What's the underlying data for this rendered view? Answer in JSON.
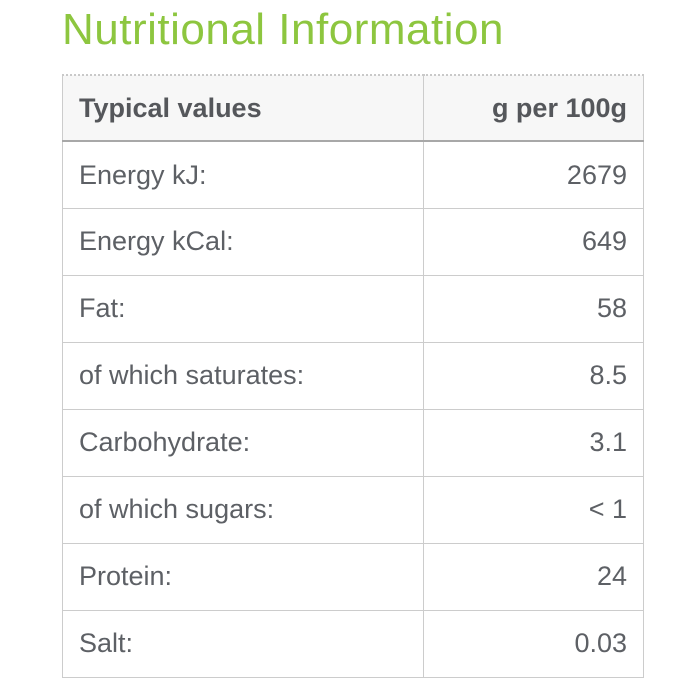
{
  "page": {
    "title": "Nutritional Information",
    "title_color": "#8dc63f"
  },
  "table": {
    "header": {
      "label_col": "Typical values",
      "value_col": "g per 100g"
    },
    "rows": [
      {
        "label": "Energy kJ:",
        "value": "2679"
      },
      {
        "label": "Energy kCal:",
        "value": "649"
      },
      {
        "label": "Fat:",
        "value": "58"
      },
      {
        "label": "of which saturates:",
        "value": "8.5"
      },
      {
        "label": "Carbohydrate:",
        "value": "3.1"
      },
      {
        "label": "of which sugars:",
        "value": "< 1"
      },
      {
        "label": "Protein:",
        "value": "24"
      },
      {
        "label": "Salt:",
        "value": "0.03"
      }
    ]
  }
}
